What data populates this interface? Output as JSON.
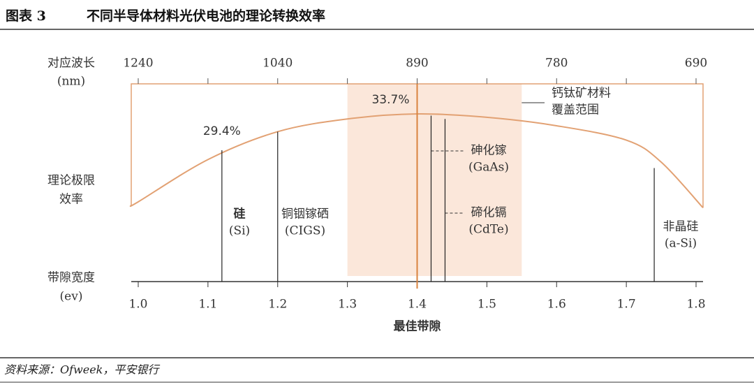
{
  "header": {
    "label": "图表 3",
    "title": "不同半导体材料光伏电池的理论转换效率"
  },
  "chart_data": {
    "type": "line",
    "top_axis_label": [
      "对应波长",
      "(nm)"
    ],
    "left_labels": {
      "efficiency": [
        "理论极限",
        "效率"
      ],
      "bandgap": [
        "带隙宽度",
        "(ev)"
      ]
    },
    "x": [
      0.99,
      1.0,
      1.1,
      1.2,
      1.3,
      1.4,
      1.5,
      1.6,
      1.7,
      1.75,
      1.81
    ],
    "values": [
      22.9,
      23.3,
      28.3,
      31.6,
      33.1,
      33.7,
      33.3,
      32.3,
      30.6,
      28.0,
      22.6
    ],
    "color": "#e2a173",
    "xlim": [
      0.99,
      1.81
    ],
    "ylim": [
      20,
      36
    ],
    "xticks": [
      {
        "value": 1.0,
        "label": "1.0"
      },
      1.1,
      1.2,
      1.3,
      1.4,
      1.5,
      1.6,
      1.7,
      1.8
    ],
    "x2ticks": [
      {
        "value": 1.0,
        "label": "1240"
      },
      {
        "value": 1.1,
        "label": ""
      },
      {
        "value": 1.2,
        "label": "1040"
      },
      {
        "value": 1.3,
        "label": ""
      },
      {
        "value": 1.4,
        "label": "890"
      },
      {
        "value": 1.5,
        "label": ""
      },
      {
        "value": 1.6,
        "label": "780"
      },
      {
        "value": 1.7,
        "label": ""
      },
      {
        "value": 1.8,
        "label": "690"
      }
    ],
    "optimal": {
      "x": 1.4,
      "value": 33.7,
      "value_label": "33.7%",
      "label": "最佳带隙"
    },
    "perovskite": {
      "range": [
        1.3,
        1.55
      ],
      "label": [
        "钙钛矿材料",
        "覆盖范围"
      ]
    },
    "materials": [
      {
        "label": [
          "硅",
          "(Si)"
        ],
        "x": 1.12,
        "value": 29.4,
        "value_label": "29.4%"
      },
      {
        "label": [
          "铜铟镓硒",
          "(CIGS)"
        ],
        "x": 1.2,
        "value": 31.6
      },
      {
        "label": [
          "砷化镓",
          "(GaAs)"
        ],
        "x": 1.42,
        "value": 33.5
      },
      {
        "label": [
          "碲化镉",
          "(CdTe)"
        ],
        "x": 1.44,
        "value": 33.1
      },
      {
        "label": [
          "非晶硅",
          "(a-Si)"
        ],
        "x": 1.74,
        "value": 27.3
      }
    ]
  },
  "source": "资料来源：Ofweek，平安银行"
}
